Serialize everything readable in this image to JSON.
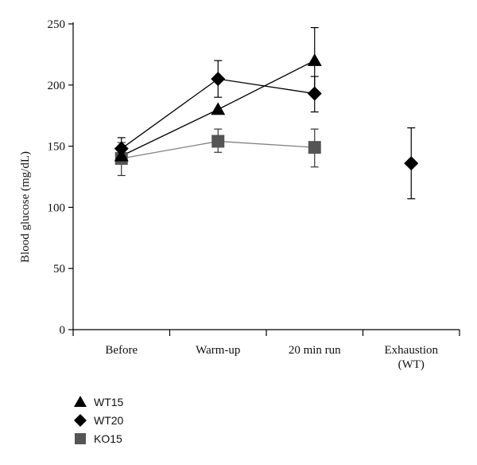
{
  "chart_data": {
    "type": "line",
    "categories": [
      "Before",
      "Warm-up",
      "20 min  run",
      "Exhaustion\n(WT)"
    ],
    "ylabel": "Blood glucose (mg/dL)",
    "xlabel": "",
    "ylim": [
      0,
      250
    ],
    "yticks": [
      0,
      50,
      100,
      150,
      200,
      250
    ],
    "grid": false,
    "legend_position": "bottom-left",
    "series": [
      {
        "name": "WT15",
        "marker": "triangle",
        "color": "#000000",
        "line_color": "#000000",
        "values": [
          142,
          180,
          220,
          null
        ],
        "error": [
          [
            null,
            null
          ],
          [
            null,
            null
          ],
          [
            193,
            247
          ],
          [
            null,
            null
          ]
        ]
      },
      {
        "name": "WT20",
        "marker": "diamond",
        "color": "#000000",
        "line_color": "#000000",
        "values": [
          148,
          205,
          193,
          136
        ],
        "error": [
          [
            138,
            157
          ],
          [
            190,
            220
          ],
          [
            178,
            207
          ],
          [
            107,
            165
          ]
        ]
      },
      {
        "name": "KO15",
        "marker": "square",
        "color": "#555555",
        "line_color": "#808080",
        "values": [
          140,
          154,
          149,
          null
        ],
        "error": [
          [
            126,
            153
          ],
          [
            145,
            164
          ],
          [
            133,
            164
          ],
          [
            null,
            null
          ]
        ]
      }
    ]
  }
}
